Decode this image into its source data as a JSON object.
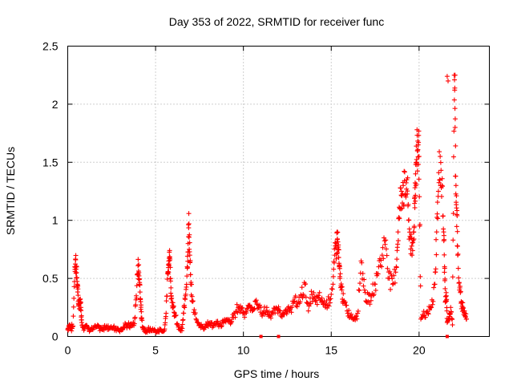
{
  "chart_data": {
    "type": "scatter",
    "title": "Day 353 of 2022, SRMTID for receiver func",
    "xlabel": "GPS time / hours",
    "ylabel": "SRMTID / TECUs",
    "xlim": [
      0,
      24
    ],
    "ylim": [
      0,
      2.5
    ],
    "x_ticks": [
      0,
      5,
      10,
      15,
      20
    ],
    "x_tick_labels": [
      "0",
      "5",
      "10",
      "15",
      "20"
    ],
    "y_ticks": [
      0,
      0.5,
      1,
      1.5,
      2,
      2.5
    ],
    "y_tick_labels": [
      "0",
      "0.5",
      "1",
      "1.5",
      "2",
      "2.5"
    ],
    "grid": true,
    "marker": "+",
    "series": [
      {
        "name": "SRMTID",
        "color": "#ff0000",
        "x": [
          0.0,
          0.1,
          0.2,
          0.3,
          0.4,
          0.45,
          0.5,
          0.55,
          0.6,
          0.65,
          0.7,
          0.75,
          0.8,
          0.9,
          1.0,
          1.2,
          1.4,
          1.6,
          1.8,
          2.0,
          2.2,
          2.4,
          2.6,
          2.8,
          3.0,
          3.2,
          3.4,
          3.6,
          3.8,
          3.9,
          4.0,
          4.05,
          4.1,
          4.15,
          4.2,
          4.3,
          4.5,
          4.7,
          4.9,
          5.1,
          5.3,
          5.5,
          5.6,
          5.7,
          5.75,
          5.8,
          5.85,
          5.9,
          6.0,
          6.1,
          6.3,
          6.5,
          6.6,
          6.7,
          6.8,
          6.85,
          6.9,
          6.95,
          7.0,
          7.1,
          7.3,
          7.5,
          7.7,
          7.9,
          8.1,
          8.3,
          8.5,
          8.7,
          8.9,
          9.1,
          9.3,
          9.5,
          9.7,
          9.9,
          10.1,
          10.3,
          10.5,
          10.7,
          10.9,
          11.1,
          11.3,
          11.5,
          11.7,
          11.9,
          12.1,
          12.3,
          12.5,
          12.7,
          12.9,
          13.1,
          13.3,
          13.5,
          13.7,
          13.9,
          14.1,
          14.3,
          14.5,
          14.7,
          14.9,
          15.1,
          15.2,
          15.3,
          15.35,
          15.4,
          15.45,
          15.5,
          15.6,
          15.7,
          15.9,
          16.1,
          16.3,
          16.5,
          16.7,
          16.9,
          17.1,
          17.3,
          17.5,
          17.7,
          17.9,
          18.1,
          18.3,
          18.5,
          18.7,
          18.8,
          18.9,
          19.0,
          19.1,
          19.2,
          19.3,
          19.4,
          19.5,
          19.6,
          19.7,
          19.75,
          19.8,
          19.85,
          19.9,
          19.95,
          20.0,
          20.1,
          20.3,
          20.5,
          20.7,
          20.9,
          21.0,
          21.1,
          21.2,
          21.3,
          21.4,
          21.45,
          21.5,
          21.55,
          21.6,
          21.7,
          21.8,
          21.9,
          22.0,
          22.05,
          22.1,
          22.15,
          22.2,
          22.3,
          22.4,
          22.5,
          22.6,
          22.7
        ],
        "y": [
          0.06,
          0.1,
          0.07,
          0.09,
          0.6,
          0.66,
          0.55,
          0.45,
          0.3,
          0.28,
          0.32,
          0.25,
          0.12,
          0.08,
          0.09,
          0.07,
          0.06,
          0.08,
          0.07,
          0.06,
          0.09,
          0.07,
          0.08,
          0.07,
          0.06,
          0.08,
          0.1,
          0.09,
          0.11,
          0.35,
          0.61,
          0.55,
          0.45,
          0.3,
          0.15,
          0.06,
          0.05,
          0.07,
          0.05,
          0.04,
          0.06,
          0.05,
          0.2,
          0.55,
          0.65,
          0.74,
          0.5,
          0.35,
          0.25,
          0.18,
          0.08,
          0.05,
          0.2,
          0.35,
          0.6,
          0.8,
          0.97,
          0.7,
          0.45,
          0.3,
          0.15,
          0.1,
          0.08,
          0.1,
          0.12,
          0.09,
          0.11,
          0.1,
          0.13,
          0.14,
          0.12,
          0.2,
          0.25,
          0.24,
          0.2,
          0.26,
          0.22,
          0.3,
          0.25,
          0.2,
          0.22,
          0.18,
          0.2,
          0.24,
          0.22,
          0.19,
          0.21,
          0.25,
          0.3,
          0.28,
          0.35,
          0.45,
          0.22,
          0.36,
          0.3,
          0.33,
          0.3,
          0.28,
          0.32,
          0.45,
          0.7,
          0.8,
          0.84,
          0.75,
          0.6,
          0.5,
          0.4,
          0.3,
          0.22,
          0.18,
          0.15,
          0.2,
          0.65,
          0.4,
          0.3,
          0.35,
          0.45,
          0.6,
          0.7,
          0.83,
          0.5,
          0.45,
          0.6,
          0.9,
          1.1,
          1.25,
          1.3,
          1.22,
          1.35,
          1.0,
          0.85,
          0.7,
          0.9,
          1.2,
          1.4,
          1.5,
          1.6,
          1.65,
          1.55,
          0.15,
          0.18,
          0.2,
          0.25,
          0.45,
          0.9,
          1.25,
          1.55,
          1.3,
          0.9,
          0.6,
          0.3,
          0.35,
          0.12,
          0.15,
          0.25,
          0.1,
          2.25,
          1.8,
          1.3,
          1.05,
          0.7,
          0.4,
          0.3,
          0.25,
          0.2,
          0.15
        ],
        "extra_points": {
          "x": [
            21.6,
            21.65,
            22.05
          ],
          "y": [
            2.24,
            2.2,
            2.25
          ]
        }
      }
    ]
  }
}
